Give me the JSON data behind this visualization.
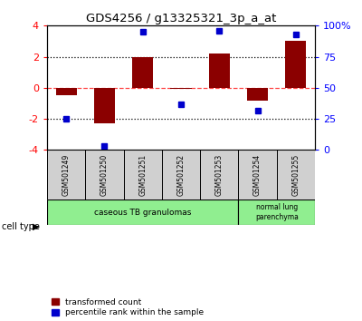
{
  "title": "GDS4256 / g13325321_3p_a_at",
  "samples": [
    "GSM501249",
    "GSM501250",
    "GSM501251",
    "GSM501252",
    "GSM501253",
    "GSM501254",
    "GSM501255"
  ],
  "red_values": [
    -0.5,
    -2.3,
    2.0,
    -0.05,
    2.2,
    -0.8,
    3.0
  ],
  "blue_values_pct": [
    25,
    3,
    95,
    37,
    96,
    32,
    93
  ],
  "ylim": [
    -4,
    4
  ],
  "yticks_left": [
    -4,
    -2,
    0,
    2,
    4
  ],
  "yticks_right_pct": [
    0,
    25,
    50,
    75,
    100
  ],
  "red_color": "#8b0000",
  "blue_color": "#0000cc",
  "bg_color": "#ffffff",
  "hline_color_0": "#ff4444",
  "hline_color_dotted": "#000000",
  "sample_box_color": "#d0d0d0",
  "cell_color": "#90ee90",
  "legend_red_label": "transformed count",
  "legend_blue_label": "percentile rank within the sample"
}
